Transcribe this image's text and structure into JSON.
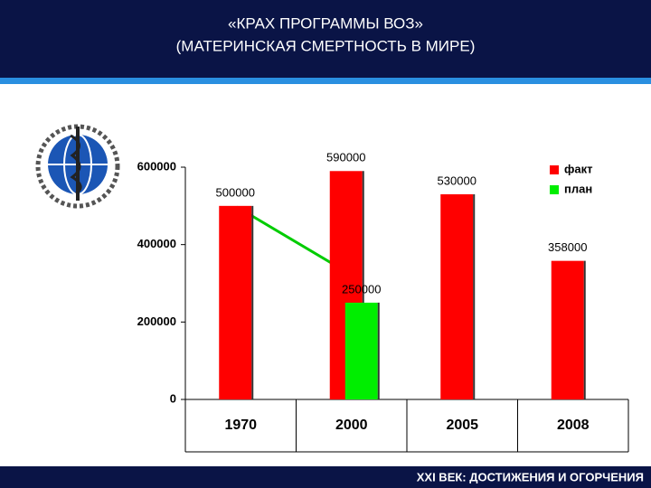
{
  "header": {
    "title_line1": "«КРАХ ПРОГРАММЫ ВОЗ»",
    "title_line2": "(МАТЕРИНСКАЯ СМЕРТНОСТЬ В МИРЕ)"
  },
  "footer": {
    "text": "XXI ВЕК: ДОСТИЖЕНИЯ И ОГОРЧЕНИЯ"
  },
  "chart_data": {
    "type": "bar",
    "categories": [
      "1970",
      "2000",
      "2005",
      "2008"
    ],
    "series": [
      {
        "name": "факт",
        "color": "#ff0000",
        "values": [
          500000,
          590000,
          530000,
          358000
        ]
      },
      {
        "name": "план",
        "color": "#00ee00",
        "values": [
          null,
          250000,
          null,
          null
        ]
      }
    ],
    "ylim": [
      0,
      600000
    ],
    "yticks": [
      0,
      200000,
      400000,
      600000
    ],
    "legend": "top-right"
  }
}
